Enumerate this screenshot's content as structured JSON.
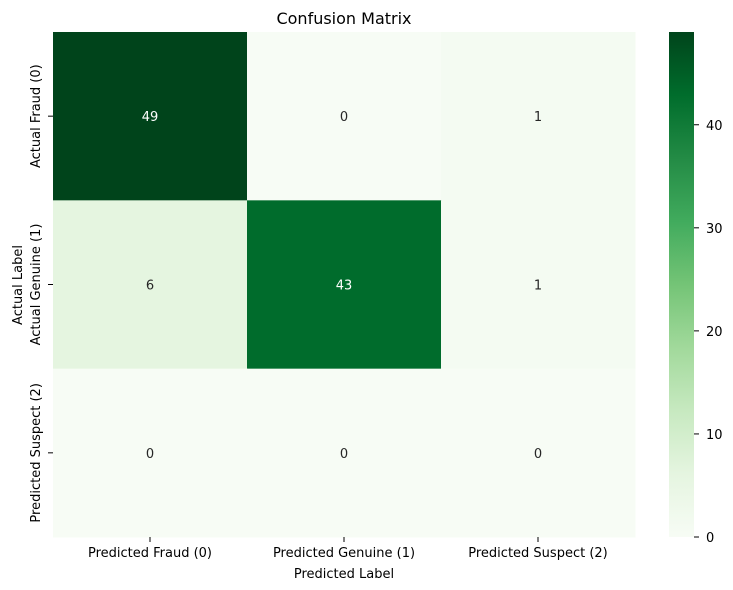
{
  "chart_data": {
    "type": "heatmap",
    "title": "Confusion Matrix",
    "xlabel": "Predicted Label",
    "ylabel": "Actual Label",
    "x_categories": [
      "Predicted Fraud (0)",
      "Predicted Genuine (1)",
      "Predicted Suspect (2)"
    ],
    "y_categories": [
      "Actual Fraud (0)",
      "Actual Genuine (1)",
      "Predicted Suspect (2)"
    ],
    "values": [
      [
        49,
        0,
        1
      ],
      [
        6,
        43,
        1
      ],
      [
        0,
        0,
        0
      ]
    ],
    "colormap": "Greens",
    "vmin": 0,
    "vmax": 49,
    "colorbar_ticks": [
      0,
      10,
      20,
      30,
      40
    ]
  }
}
